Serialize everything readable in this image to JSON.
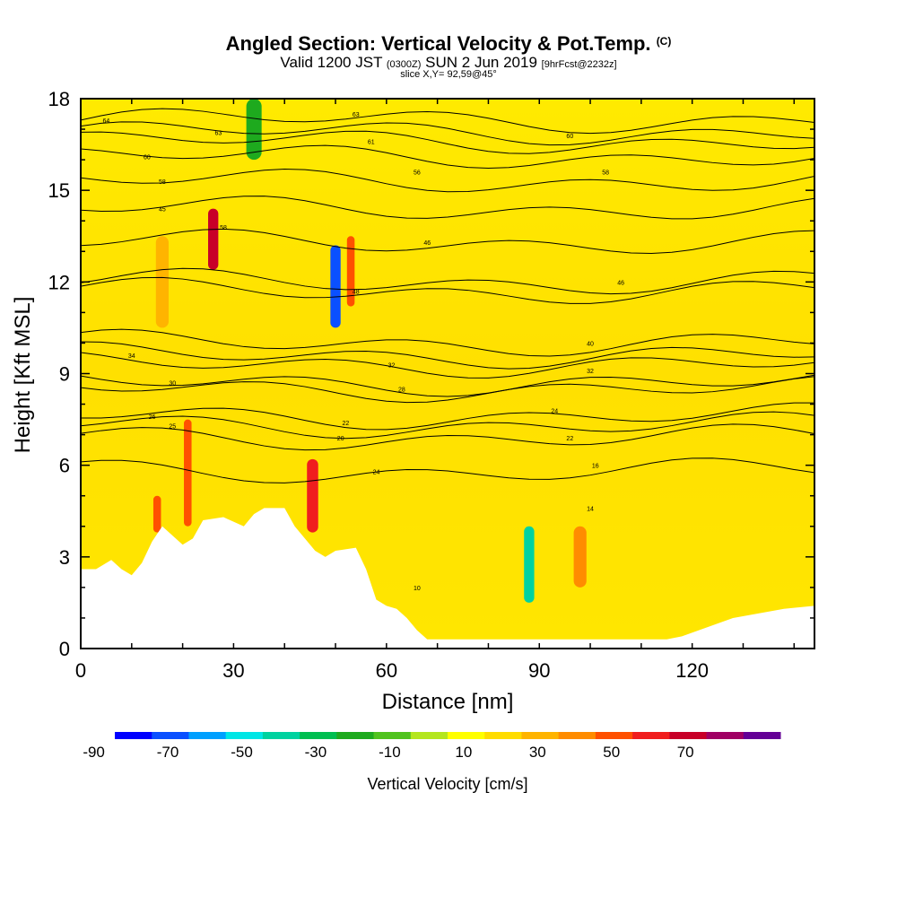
{
  "header": {
    "title": "Angled Section: Vertical Velocity & Pot.Temp.",
    "title_mark": "(C)",
    "valid_a": "Valid 1200 JST",
    "valid_b": "(0300Z)",
    "valid_c": "SUN 2 Jun 2019",
    "valid_d": "[9hrFcst@2232z]",
    "slice": "slice X,Y= 92,59@45°"
  },
  "chart_data": {
    "type": "heatmap",
    "xlabel": "Distance [nm]",
    "ylabel": "Height [Kft MSL]",
    "xlim": [
      0,
      144
    ],
    "ylim": [
      0,
      18
    ],
    "xticks": [
      0,
      30,
      60,
      90,
      120
    ],
    "yticks": [
      0,
      3,
      6,
      9,
      12,
      15,
      18
    ],
    "colorbar": {
      "title": "Vertical Velocity [cm/s]",
      "bounds": [
        -90,
        -80,
        -70,
        -60,
        -50,
        -40,
        -30,
        -20,
        -10,
        0,
        10,
        20,
        30,
        40,
        50,
        60,
        70,
        80
      ],
      "labels": [
        -90,
        -70,
        -50,
        -30,
        -10,
        10,
        30,
        50,
        70
      ],
      "colors": [
        "#0000ff",
        "#0a50ff",
        "#00a0ff",
        "#00e6e6",
        "#00d2a0",
        "#00be50",
        "#1eaa1e",
        "#50c31e",
        "#b4e61e",
        "#ffff00",
        "#ffdc00",
        "#ffb400",
        "#ff8c00",
        "#ff5000",
        "#f01e1e",
        "#c80028",
        "#a00064",
        "#640096"
      ]
    },
    "terrain_kft": [
      [
        0,
        2.6
      ],
      [
        3,
        2.6
      ],
      [
        6,
        2.9
      ],
      [
        8,
        2.6
      ],
      [
        10,
        2.4
      ],
      [
        12,
        2.8
      ],
      [
        14,
        3.5
      ],
      [
        16,
        4.0
      ],
      [
        18,
        3.7
      ],
      [
        20,
        3.4
      ],
      [
        22,
        3.6
      ],
      [
        24,
        4.2
      ],
      [
        28,
        4.3
      ],
      [
        32,
        4.0
      ],
      [
        34,
        4.4
      ],
      [
        36,
        4.6
      ],
      [
        40,
        4.6
      ],
      [
        42,
        4.0
      ],
      [
        44,
        3.6
      ],
      [
        46,
        3.2
      ],
      [
        48,
        3.0
      ],
      [
        50,
        3.2
      ],
      [
        54,
        3.3
      ],
      [
        56,
        2.6
      ],
      [
        58,
        1.6
      ],
      [
        60,
        1.4
      ],
      [
        62,
        1.3
      ],
      [
        64,
        1.0
      ],
      [
        66,
        0.6
      ],
      [
        68,
        0.3
      ],
      [
        115,
        0.3
      ],
      [
        118,
        0.4
      ],
      [
        128,
        1.0
      ],
      [
        138,
        1.3
      ],
      [
        144,
        1.4
      ]
    ],
    "bands": [
      {
        "x": 15,
        "w": 1.5,
        "y0": 3.8,
        "y1": 5.0,
        "v": 45
      },
      {
        "x": 21,
        "w": 1.5,
        "y0": 4.0,
        "y1": 7.5,
        "v": 45
      },
      {
        "x": 26,
        "w": 2.0,
        "y0": 12.4,
        "y1": 14.4,
        "v": 62
      },
      {
        "x": 45.5,
        "w": 2.2,
        "y0": 3.8,
        "y1": 6.2,
        "v": 55
      },
      {
        "x": 50,
        "w": 2.0,
        "y0": 10.5,
        "y1": 13.2,
        "v": -75
      },
      {
        "x": 53,
        "w": 1.5,
        "y0": 11.2,
        "y1": 13.5,
        "v": 42
      },
      {
        "x": 88,
        "w": 2.0,
        "y0": 1.5,
        "y1": 4.0,
        "v": -45
      },
      {
        "x": 98,
        "w": 2.5,
        "y0": 2.0,
        "y1": 4.0,
        "v": 35
      },
      {
        "x": 16,
        "w": 2.5,
        "y0": 10.5,
        "y1": 13.5,
        "v": 25
      },
      {
        "x": 34,
        "w": 3.0,
        "y0": 16.0,
        "y1": 18.0,
        "v": -28
      }
    ],
    "contour_labels": [
      {
        "x": 5,
        "y": 17.3,
        "text": "64"
      },
      {
        "x": 27,
        "y": 16.9,
        "text": "63"
      },
      {
        "x": 54,
        "y": 17.5,
        "text": "63"
      },
      {
        "x": 57,
        "y": 16.6,
        "text": "61"
      },
      {
        "x": 13,
        "y": 16.1,
        "text": "60"
      },
      {
        "x": 16,
        "y": 15.3,
        "text": "58"
      },
      {
        "x": 66,
        "y": 15.6,
        "text": "56"
      },
      {
        "x": 96,
        "y": 16.8,
        "text": "60"
      },
      {
        "x": 103,
        "y": 15.6,
        "text": "58"
      },
      {
        "x": 16,
        "y": 14.4,
        "text": "45"
      },
      {
        "x": 28,
        "y": 13.8,
        "text": "58"
      },
      {
        "x": 68,
        "y": 13.3,
        "text": "46"
      },
      {
        "x": 106,
        "y": 12.0,
        "text": "46"
      },
      {
        "x": 54,
        "y": 11.7,
        "text": "48"
      },
      {
        "x": 10,
        "y": 9.6,
        "text": "34"
      },
      {
        "x": 61,
        "y": 9.3,
        "text": "32"
      },
      {
        "x": 100,
        "y": 10.0,
        "text": "40"
      },
      {
        "x": 100,
        "y": 9.1,
        "text": "32"
      },
      {
        "x": 18,
        "y": 8.7,
        "text": "30"
      },
      {
        "x": 63,
        "y": 8.5,
        "text": "28"
      },
      {
        "x": 14,
        "y": 7.6,
        "text": "26"
      },
      {
        "x": 18,
        "y": 7.3,
        "text": "25"
      },
      {
        "x": 93,
        "y": 7.8,
        "text": "24"
      },
      {
        "x": 52,
        "y": 7.4,
        "text": "22"
      },
      {
        "x": 51,
        "y": 6.9,
        "text": "20"
      },
      {
        "x": 96,
        "y": 6.9,
        "text": "22"
      },
      {
        "x": 58,
        "y": 5.8,
        "text": "24"
      },
      {
        "x": 101,
        "y": 6.0,
        "text": "16"
      },
      {
        "x": 100,
        "y": 4.6,
        "text": "14"
      },
      {
        "x": 66,
        "y": 2.0,
        "text": "10"
      }
    ]
  }
}
